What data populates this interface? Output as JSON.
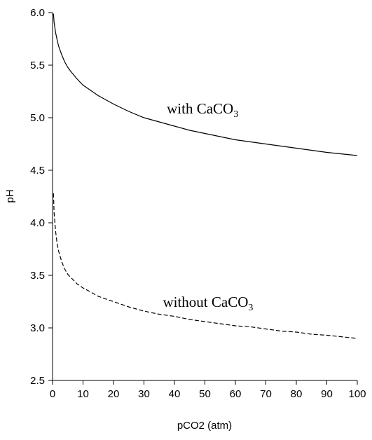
{
  "chart_data": {
    "type": "line",
    "title": "",
    "xlabel": "pCO2 (atm)",
    "ylabel": "pH",
    "xlim": [
      0,
      100
    ],
    "ylim": [
      2.5,
      6.0
    ],
    "xticks": [
      0,
      10,
      20,
      30,
      40,
      50,
      60,
      70,
      80,
      90,
      100
    ],
    "yticks": [
      2.5,
      3.0,
      3.5,
      4.0,
      4.5,
      5.0,
      5.5,
      6.0
    ],
    "xtick_labels": [
      "0",
      "10",
      "20",
      "30",
      "40",
      "50",
      "60",
      "70",
      "80",
      "90",
      "100"
    ],
    "ytick_labels": [
      "2.5",
      "3.0",
      "3.5",
      "4.0",
      "4.5",
      "5.0",
      "5.5",
      "6.0"
    ],
    "grid": false,
    "legend": "none",
    "series": [
      {
        "style": "solid",
        "color": "#000000",
        "x": [
          0.3,
          0.5,
          1,
          1.5,
          2,
          3,
          4,
          5,
          6,
          8,
          10,
          12,
          15,
          20,
          25,
          30,
          35,
          40,
          45,
          50,
          55,
          60,
          65,
          70,
          75,
          80,
          85,
          90,
          95,
          100
        ],
        "y": [
          5.99,
          5.91,
          5.81,
          5.74,
          5.68,
          5.6,
          5.53,
          5.48,
          5.44,
          5.37,
          5.31,
          5.27,
          5.21,
          5.13,
          5.06,
          5.0,
          4.96,
          4.92,
          4.88,
          4.85,
          4.82,
          4.79,
          4.77,
          4.75,
          4.73,
          4.71,
          4.69,
          4.67,
          4.655,
          4.64
        ]
      },
      {
        "style": "dashed",
        "color": "#000000",
        "x": [
          0.3,
          0.5,
          1,
          1.5,
          2,
          3,
          4,
          5,
          6,
          8,
          10,
          12,
          15,
          20,
          25,
          30,
          35,
          40,
          45,
          50,
          55,
          60,
          65,
          70,
          75,
          80,
          85,
          90,
          95,
          100
        ],
        "y": [
          4.28,
          4.1,
          3.92,
          3.8,
          3.73,
          3.63,
          3.56,
          3.51,
          3.48,
          3.42,
          3.38,
          3.35,
          3.3,
          3.25,
          3.2,
          3.16,
          3.13,
          3.11,
          3.08,
          3.06,
          3.04,
          3.02,
          3.01,
          2.99,
          2.97,
          2.96,
          2.94,
          2.93,
          2.915,
          2.9
        ]
      }
    ],
    "annotations": [
      {
        "text": "with CaCO",
        "subscript": "3",
        "x": 37.5,
        "y": 5.04
      },
      {
        "text": "without CaCO",
        "subscript": "3",
        "x": 36.2,
        "y": 3.2
      }
    ]
  }
}
